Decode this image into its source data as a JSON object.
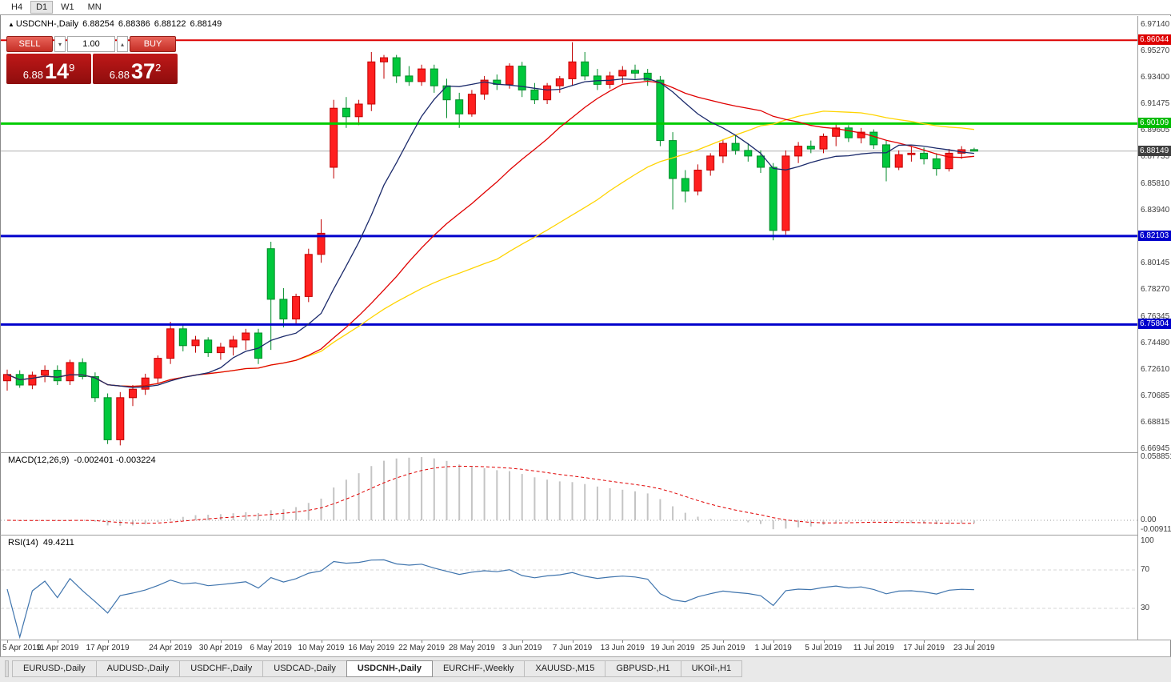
{
  "toolbar": {
    "timeframes": [
      {
        "label": "H4",
        "active": false
      },
      {
        "label": "D1",
        "active": true
      },
      {
        "label": "W1",
        "active": false
      },
      {
        "label": "MN",
        "active": false
      }
    ]
  },
  "chart_header": {
    "arrow_icon": "▲",
    "symbol_label": "USDCNH-,Daily",
    "open": "6.88254",
    "high": "6.88386",
    "low": "6.88122",
    "close": "6.88149"
  },
  "trade_panel": {
    "sell_label": "SELL",
    "buy_label": "BUY",
    "volume": "1.00",
    "spin_down_icon": "▾",
    "spin_up_icon": "▴",
    "sell_price": {
      "prefix": "6.88",
      "main": "14",
      "sup": "9"
    },
    "buy_price": {
      "prefix": "6.88",
      "main": "37",
      "sup": "2"
    },
    "tile_color": "#a81010",
    "button_color": "#c62f26"
  },
  "price_axis": {
    "labels": [
      "6.97140",
      "6.95270",
      "6.93400",
      "6.91475",
      "6.89605",
      "6.87735",
      "6.85810",
      "6.83940",
      "6.80145",
      "6.78270",
      "6.76345",
      "6.74480",
      "6.72610",
      "6.70685",
      "6.68815",
      "6.66945"
    ],
    "badges": [
      {
        "value": "6.96044",
        "color": "#dd0000"
      },
      {
        "value": "6.90109",
        "color": "#00bb00"
      },
      {
        "value": "6.88149",
        "color": "#404040"
      },
      {
        "value": "6.82103",
        "color": "#0000cc"
      },
      {
        "value": "6.75804",
        "color": "#0000cc"
      }
    ]
  },
  "levels": [
    {
      "price": 6.96044,
      "color": "#dd0000",
      "width": 2
    },
    {
      "price": 6.90109,
      "color": "#00cc00",
      "width": 3
    },
    {
      "price": 6.82103,
      "color": "#0000cc",
      "width": 3
    },
    {
      "price": 6.75804,
      "color": "#0000cc",
      "width": 3
    }
  ],
  "current_price_line": {
    "price": 6.88149,
    "color": "#b0b0b0"
  },
  "macd_panel": {
    "title": "MACD(12,26,9)",
    "values": "-0.002401 -0.003224",
    "scale_max": "0.058851",
    "scale_zero": "0.00",
    "scale_min": "-0.009116",
    "histogram_color": "#c4c4c4",
    "signal_color": "#e00000"
  },
  "rsi_panel": {
    "title": "RSI(14)",
    "value": "49.4211",
    "scale_top": "100",
    "scale_upper": "70",
    "scale_lower": "30",
    "line_color": "#3f74ad"
  },
  "time_axis": [
    {
      "i": 0,
      "label": "5 Apr 2019"
    },
    {
      "i": 4,
      "label": "11 Apr 2019"
    },
    {
      "i": 8,
      "label": "17 Apr 2019"
    },
    {
      "i": 13,
      "label": "24 Apr 2019"
    },
    {
      "i": 17,
      "label": "30 Apr 2019"
    },
    {
      "i": 21,
      "label": "6 May 2019"
    },
    {
      "i": 25,
      "label": "10 May 2019"
    },
    {
      "i": 29,
      "label": "16 May 2019"
    },
    {
      "i": 33,
      "label": "22 May 2019"
    },
    {
      "i": 37,
      "label": "28 May 2019"
    },
    {
      "i": 41,
      "label": "3 Jun 2019"
    },
    {
      "i": 45,
      "label": "7 Jun 2019"
    },
    {
      "i": 49,
      "label": "13 Jun 2019"
    },
    {
      "i": 53,
      "label": "19 Jun 2019"
    },
    {
      "i": 57,
      "label": "25 Jun 2019"
    },
    {
      "i": 61,
      "label": "1 Jul 2019"
    },
    {
      "i": 65,
      "label": "5 Jul 2019"
    },
    {
      "i": 69,
      "label": "11 Jul 2019"
    },
    {
      "i": 73,
      "label": "17 Jul 2019"
    },
    {
      "i": 77,
      "label": "23 Jul 2019"
    }
  ],
  "bottom_tabs": [
    {
      "label": "EURUSD-,Daily",
      "active": false
    },
    {
      "label": "AUDUSD-,Daily",
      "active": false
    },
    {
      "label": "USDCHF-,Daily",
      "active": false
    },
    {
      "label": "USDCAD-,Daily",
      "active": false
    },
    {
      "label": "USDCNH-,Daily",
      "active": true
    },
    {
      "label": "EURCHF-,Weekly",
      "active": false
    },
    {
      "label": "XAUUSD-,M15",
      "active": false
    },
    {
      "label": "GBPUSD-,H1",
      "active": false
    },
    {
      "label": "UKOil-,H1",
      "active": false
    }
  ],
  "chart_data": {
    "type": "candlestick",
    "symbol": "USDCNH",
    "timeframe": "Daily",
    "ylim": [
      6.66945,
      6.9714
    ],
    "up_color": "#ff1f1f",
    "up_border": "#c00000",
    "down_color": "#00c83c",
    "down_border": "#008a28",
    "dates": [
      "2019-04-05",
      "2019-04-08",
      "2019-04-09",
      "2019-04-10",
      "2019-04-11",
      "2019-04-12",
      "2019-04-15",
      "2019-04-16",
      "2019-04-17",
      "2019-04-18",
      "2019-04-19",
      "2019-04-22",
      "2019-04-23",
      "2019-04-24",
      "2019-04-25",
      "2019-04-26",
      "2019-04-29",
      "2019-04-30",
      "2019-05-01",
      "2019-05-02",
      "2019-05-03",
      "2019-05-06",
      "2019-05-07",
      "2019-05-08",
      "2019-05-09",
      "2019-05-10",
      "2019-05-13",
      "2019-05-14",
      "2019-05-15",
      "2019-05-16",
      "2019-05-17",
      "2019-05-20",
      "2019-05-21",
      "2019-05-22",
      "2019-05-23",
      "2019-05-24",
      "2019-05-27",
      "2019-05-28",
      "2019-05-29",
      "2019-05-30",
      "2019-05-31",
      "2019-06-03",
      "2019-06-04",
      "2019-06-05",
      "2019-06-06",
      "2019-06-07",
      "2019-06-10",
      "2019-06-11",
      "2019-06-12",
      "2019-06-13",
      "2019-06-14",
      "2019-06-17",
      "2019-06-18",
      "2019-06-19",
      "2019-06-20",
      "2019-06-21",
      "2019-06-24",
      "2019-06-25",
      "2019-06-26",
      "2019-06-27",
      "2019-06-28",
      "2019-07-01",
      "2019-07-02",
      "2019-07-03",
      "2019-07-04",
      "2019-07-05",
      "2019-07-08",
      "2019-07-09",
      "2019-07-10",
      "2019-07-11",
      "2019-07-12",
      "2019-07-15",
      "2019-07-16",
      "2019-07-17",
      "2019-07-18",
      "2019-07-19",
      "2019-07-22",
      "2019-07-23"
    ],
    "ohlc": [
      [
        6.718,
        6.726,
        6.711,
        6.7225
      ],
      [
        6.7225,
        6.7255,
        6.713,
        6.715
      ],
      [
        6.715,
        6.7245,
        6.712,
        6.722
      ],
      [
        6.722,
        6.729,
        6.717,
        6.7255
      ],
      [
        6.7255,
        6.729,
        6.715,
        6.718
      ],
      [
        6.718,
        6.733,
        6.715,
        6.731
      ],
      [
        6.731,
        6.734,
        6.719,
        6.721
      ],
      [
        6.721,
        6.724,
        6.703,
        6.706
      ],
      [
        6.706,
        6.709,
        6.673,
        6.676
      ],
      [
        6.676,
        6.71,
        6.672,
        6.706
      ],
      [
        6.706,
        6.715,
        6.7,
        6.712
      ],
      [
        6.712,
        6.723,
        6.708,
        6.72
      ],
      [
        6.72,
        6.736,
        6.716,
        6.734
      ],
      [
        6.734,
        6.76,
        6.73,
        6.755
      ],
      [
        6.755,
        6.758,
        6.739,
        6.743
      ],
      [
        6.743,
        6.75,
        6.738,
        6.747
      ],
      [
        6.747,
        6.749,
        6.735,
        6.738
      ],
      [
        6.738,
        6.745,
        6.733,
        6.742
      ],
      [
        6.742,
        6.75,
        6.736,
        6.747
      ],
      [
        6.747,
        6.755,
        6.74,
        6.752
      ],
      [
        6.752,
        6.755,
        6.73,
        6.734
      ],
      [
        6.812,
        6.817,
        6.74,
        6.776
      ],
      [
        6.776,
        6.784,
        6.756,
        6.762
      ],
      [
        6.762,
        6.78,
        6.758,
        6.778
      ],
      [
        6.778,
        6.812,
        6.774,
        6.808
      ],
      [
        6.808,
        6.833,
        6.802,
        6.823
      ],
      [
        6.87,
        6.918,
        6.862,
        6.912
      ],
      [
        6.912,
        6.92,
        6.898,
        6.906
      ],
      [
        6.906,
        6.918,
        6.9,
        6.915
      ],
      [
        6.915,
        6.952,
        6.91,
        6.945
      ],
      [
        6.945,
        6.95,
        6.933,
        6.948
      ],
      [
        6.948,
        6.95,
        6.93,
        6.935
      ],
      [
        6.935,
        6.942,
        6.928,
        6.931
      ],
      [
        6.931,
        6.943,
        6.928,
        6.94
      ],
      [
        6.94,
        6.943,
        6.923,
        6.928
      ],
      [
        6.928,
        6.933,
        6.905,
        6.918
      ],
      [
        6.918,
        6.923,
        6.898,
        6.908
      ],
      [
        6.908,
        6.925,
        6.906,
        6.922
      ],
      [
        6.922,
        6.935,
        6.918,
        6.932
      ],
      [
        6.932,
        6.936,
        6.925,
        6.929
      ],
      [
        6.929,
        6.944,
        6.926,
        6.942
      ],
      [
        6.942,
        6.945,
        6.92,
        6.925
      ],
      [
        6.925,
        6.93,
        6.915,
        6.918
      ],
      [
        6.918,
        6.93,
        6.915,
        6.928
      ],
      [
        6.928,
        6.935,
        6.923,
        6.933
      ],
      [
        6.933,
        6.959,
        6.928,
        6.945
      ],
      [
        6.945,
        6.952,
        6.932,
        6.935
      ],
      [
        6.935,
        6.94,
        6.925,
        6.929
      ],
      [
        6.929,
        6.938,
        6.926,
        6.935
      ],
      [
        6.935,
        6.942,
        6.93,
        6.939
      ],
      [
        6.939,
        6.943,
        6.933,
        6.937
      ],
      [
        6.937,
        6.94,
        6.928,
        6.932
      ],
      [
        6.932,
        6.935,
        6.885,
        6.889
      ],
      [
        6.889,
        6.895,
        6.84,
        6.862
      ],
      [
        6.862,
        6.868,
        6.845,
        6.853
      ],
      [
        6.853,
        6.872,
        6.85,
        6.868
      ],
      [
        6.868,
        6.88,
        6.864,
        6.878
      ],
      [
        6.878,
        6.89,
        6.873,
        6.887
      ],
      [
        6.887,
        6.893,
        6.879,
        6.882
      ],
      [
        6.882,
        6.887,
        6.874,
        6.878
      ],
      [
        6.878,
        6.882,
        6.866,
        6.87
      ],
      [
        6.87,
        6.873,
        6.818,
        6.825
      ],
      [
        6.825,
        6.882,
        6.822,
        6.878
      ],
      [
        6.878,
        6.888,
        6.873,
        6.885
      ],
      [
        6.885,
        6.889,
        6.88,
        6.883
      ],
      [
        6.883,
        6.894,
        6.88,
        6.892
      ],
      [
        6.892,
        6.901,
        6.885,
        6.898
      ],
      [
        6.898,
        6.9,
        6.888,
        6.891
      ],
      [
        6.891,
        6.898,
        6.887,
        6.895
      ],
      [
        6.895,
        6.897,
        6.883,
        6.886
      ],
      [
        6.886,
        6.889,
        6.86,
        6.87
      ],
      [
        6.87,
        6.882,
        6.868,
        6.879
      ],
      [
        6.879,
        6.885,
        6.874,
        6.88
      ],
      [
        6.88,
        6.884,
        6.872,
        6.876
      ],
      [
        6.876,
        6.88,
        6.864,
        6.869
      ],
      [
        6.869,
        6.883,
        6.867,
        6.88
      ],
      [
        6.88,
        6.885,
        6.876,
        6.8825
      ],
      [
        6.88254,
        6.88386,
        6.88122,
        6.88149
      ]
    ],
    "moving_averages": [
      {
        "period": 40,
        "color": "#ffd400"
      },
      {
        "period": 24,
        "color": "#e00000"
      },
      {
        "period": 10,
        "color": "#1b2a6b"
      }
    ],
    "indicators": [
      {
        "name": "MACD",
        "params": [
          12,
          26,
          9
        ],
        "current": [
          -0.002401,
          -0.003224
        ]
      },
      {
        "name": "RSI",
        "params": [
          14
        ],
        "current": 49.4211
      }
    ]
  }
}
